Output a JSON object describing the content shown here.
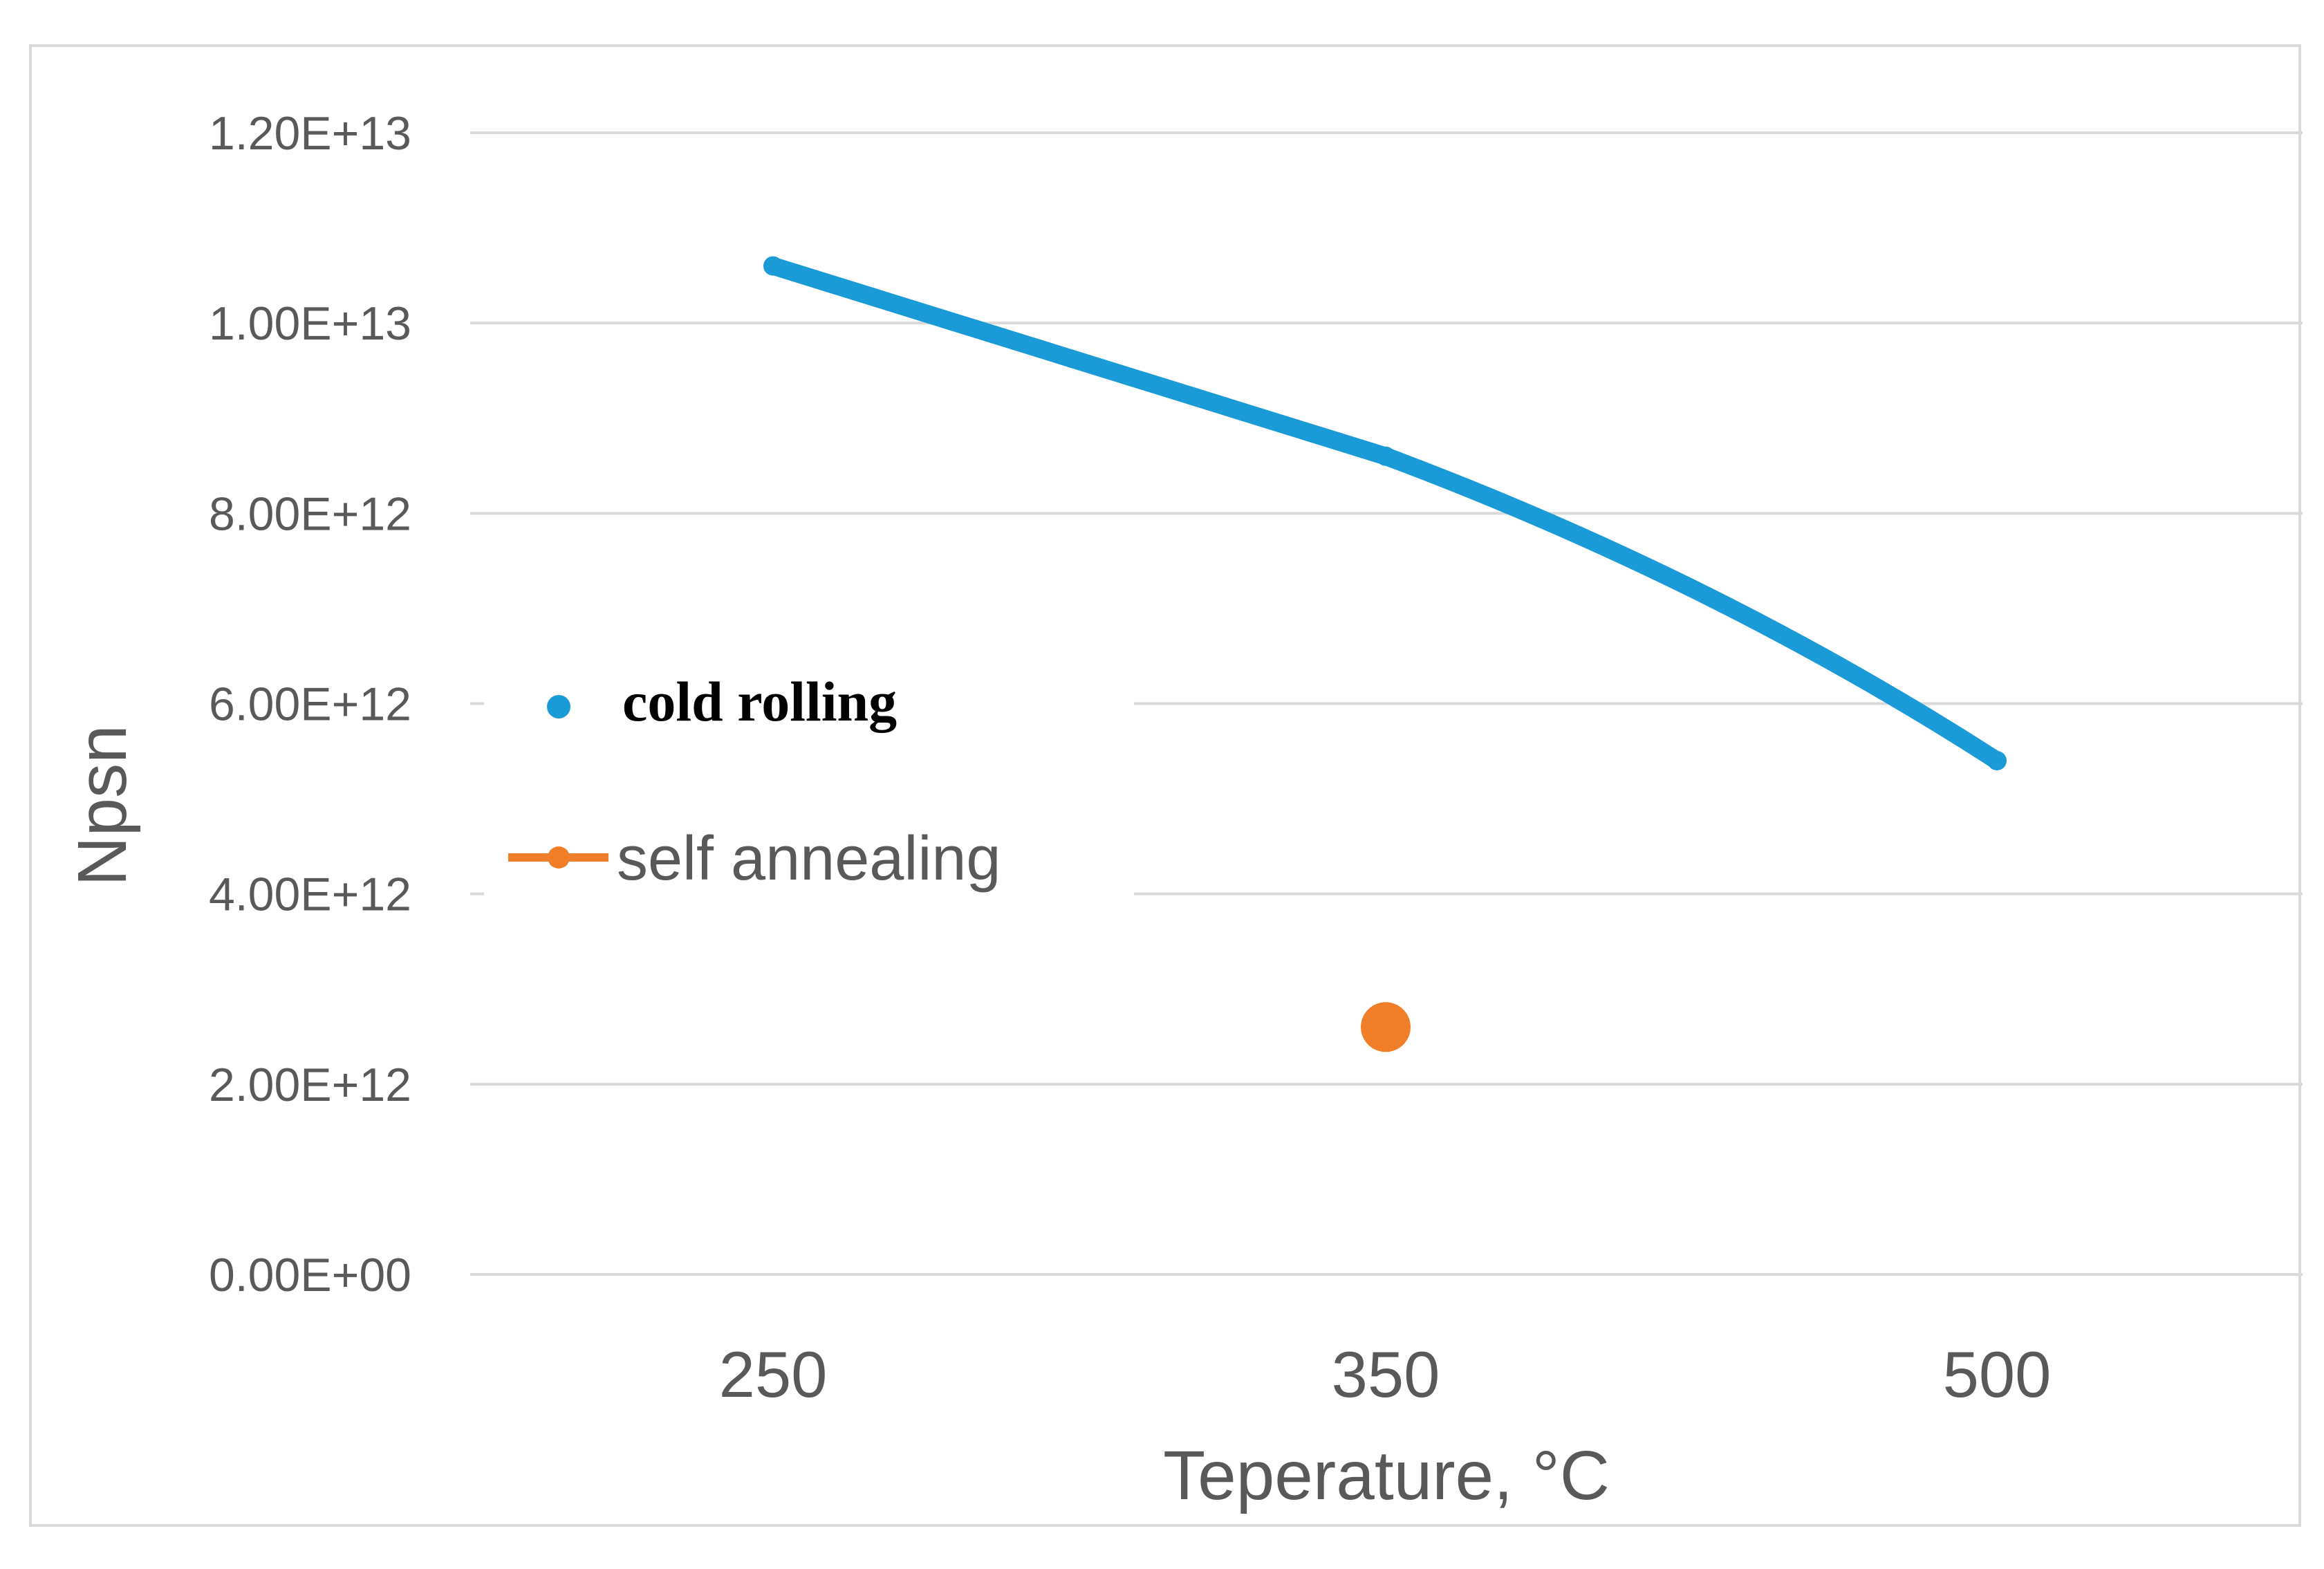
{
  "chart_data": {
    "type": "line",
    "title": "",
    "xlabel": "Teperature, °C",
    "ylabel": "Npsn",
    "categories": [
      "250",
      "350",
      "500"
    ],
    "y_ticks": [
      "0.00E+00",
      "2.00E+12",
      "4.00E+12",
      "6.00E+12",
      "8.00E+12",
      "1.00E+13",
      "1.20E+13"
    ],
    "ylim": [
      0,
      12000000000000.0
    ],
    "grid": true,
    "legend_position": "center-left",
    "series": [
      {
        "name": "cold rolling",
        "color": "#1a9ad6",
        "values": [
          10600000000000.0,
          8600000000000.0,
          5400000000000.0
        ]
      },
      {
        "name": "self annealing",
        "color": "#f07d28",
        "values": [
          null,
          2600000000000.0,
          null
        ]
      }
    ]
  }
}
